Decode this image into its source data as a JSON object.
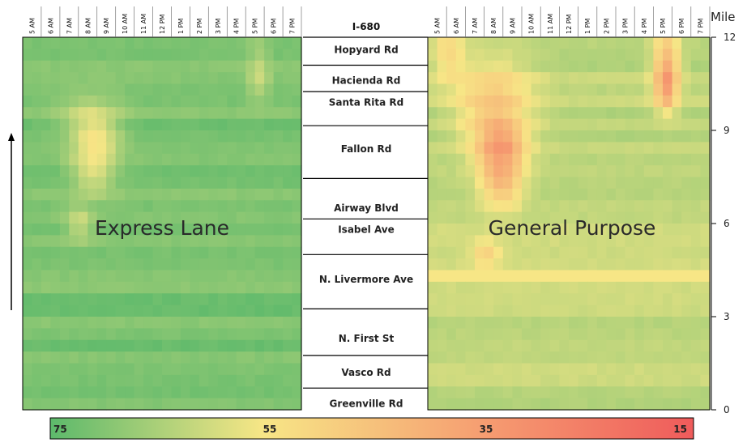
{
  "chart_data": {
    "type": "heatmap",
    "route": "I-680",
    "y_axis_title": "Mile",
    "y_ticks": [
      0,
      3,
      6,
      9,
      12
    ],
    "ylim": [
      0,
      12
    ],
    "hours": [
      "5 AM",
      "6 AM",
      "7 AM",
      "8 AM",
      "9 AM",
      "10 AM",
      "11 AM",
      "12 PM",
      "1 PM",
      "2 PM",
      "3 PM",
      "4 PM",
      "5 PM",
      "6 PM",
      "7 PM"
    ],
    "interchanges": [
      {
        "name": "Hopyard Rd",
        "mile": 11.6
      },
      {
        "name": "Hacienda Rd",
        "mile": 10.6
      },
      {
        "name": "Santa Rita Rd",
        "mile": 9.9
      },
      {
        "name": "Fallon Rd",
        "mile": 8.4
      },
      {
        "name": "Airway Blvd",
        "mile": 6.5
      },
      {
        "name": "Isabel Ave",
        "mile": 5.8
      },
      {
        "name": "N. Livermore Ave",
        "mile": 4.2
      },
      {
        "name": "N. First St",
        "mile": 2.3
      },
      {
        "name": "Vasco Rd",
        "mile": 1.2
      },
      {
        "name": "Greenville Rd",
        "mile": 0.2
      }
    ],
    "panels": [
      {
        "name": "Express Lane",
        "hotspots": [
          {
            "mile": 8.7,
            "hour": 8.4,
            "dip": 14,
            "sm": 0.6,
            "sh": 0.9
          },
          {
            "mile": 7.6,
            "hour": 8.3,
            "dip": 11,
            "sm": 0.5,
            "sh": 0.8
          },
          {
            "mile": 6.0,
            "hour": 7.6,
            "dip": 10,
            "sm": 0.4,
            "sh": 0.5
          },
          {
            "mile": 9.5,
            "hour": 8.0,
            "dip": 6,
            "sm": 0.6,
            "sh": 1.2
          },
          {
            "mile": 11.2,
            "hour": 17.2,
            "dip": 6,
            "sm": 0.7,
            "sh": 0.4
          },
          {
            "mile": 10.5,
            "hour": 17.2,
            "dip": 5,
            "sm": 0.4,
            "sh": 0.4
          }
        ],
        "base_speed": 71
      },
      {
        "name": "General Purpose",
        "hotspots": [
          {
            "mile": 8.5,
            "hour": 8.4,
            "dip": 22,
            "sm": 0.6,
            "sh": 0.9
          },
          {
            "mile": 7.3,
            "hour": 8.4,
            "dip": 18,
            "sm": 0.6,
            "sh": 0.8
          },
          {
            "mile": 9.9,
            "hour": 8.0,
            "dip": 15,
            "sm": 1.0,
            "sh": 1.4
          },
          {
            "mile": 11.2,
            "hour": 17.2,
            "dip": 20,
            "sm": 0.8,
            "sh": 0.5
          },
          {
            "mile": 10.3,
            "hour": 17.2,
            "dip": 18,
            "sm": 0.5,
            "sh": 0.4
          },
          {
            "mile": 5.0,
            "hour": 7.6,
            "dip": 12,
            "sm": 0.3,
            "sh": 0.5
          },
          {
            "mile": 11.5,
            "hour": 5.6,
            "dip": 12,
            "sm": 0.6,
            "sh": 0.6
          }
        ],
        "band": {
          "mile_from": 4.2,
          "mile_to": 4.6,
          "speed": 55
        },
        "base_speed": 62
      }
    ],
    "color_scale": {
      "labels": [
        "75",
        "55",
        "35",
        "15"
      ],
      "values": [
        75,
        55,
        35,
        15
      ],
      "colors": [
        "#5cb96b",
        "#f7e686",
        "#f6a072",
        "#ef5b5b"
      ]
    }
  }
}
